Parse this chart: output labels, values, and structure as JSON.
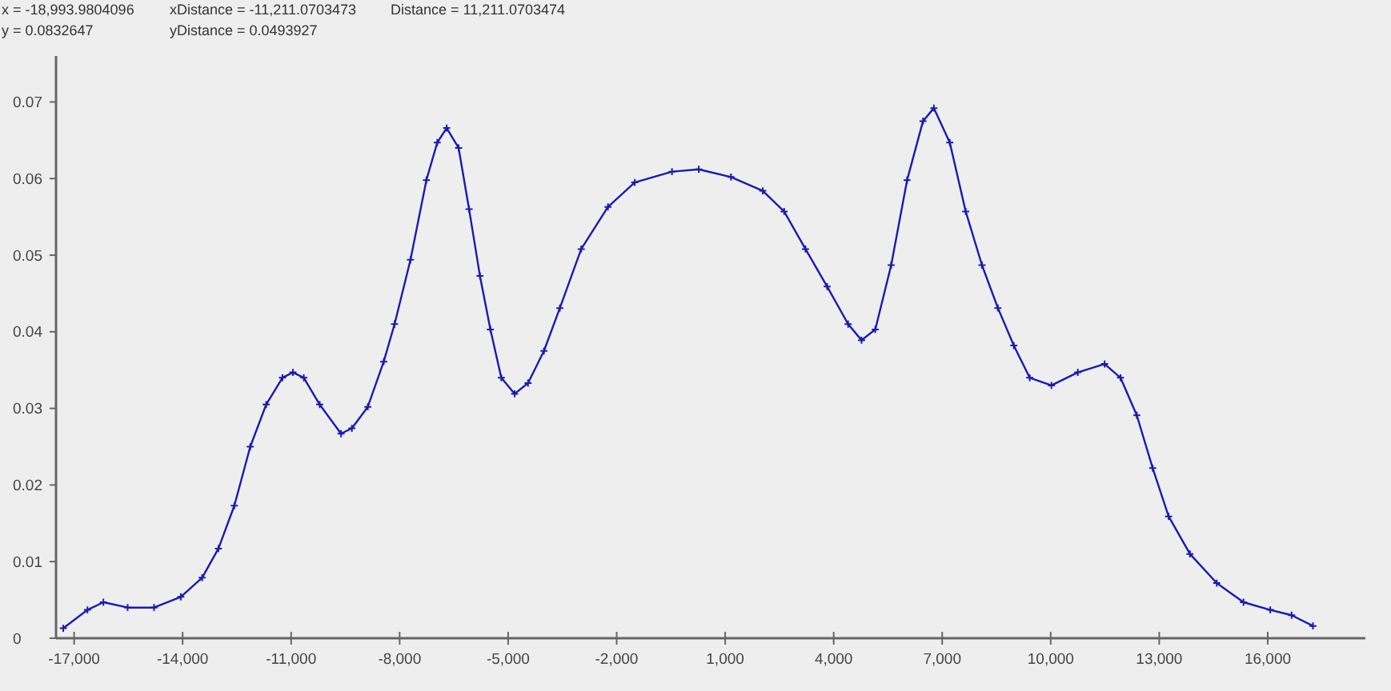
{
  "chart_data": {
    "type": "line",
    "annotations": [
      "x = -18,993.9804096",
      "xDistance = -11,211.0703473",
      "Distance = 11,211.0703474",
      "y = 0.0832647",
      "yDistance = 0.0493927"
    ],
    "x": [
      -17300,
      -16630,
      -16190,
      -15520,
      -14790,
      -14050,
      -13460,
      -13010,
      -12570,
      -12130,
      -11690,
      -11240,
      -10950,
      -10650,
      -10210,
      -9620,
      -9320,
      -8880,
      -8440,
      -8140,
      -7700,
      -7260,
      -6960,
      -6700,
      -6370,
      -6080,
      -5780,
      -5490,
      -5190,
      -4820,
      -4450,
      -4010,
      -3570,
      -2980,
      -2240,
      -1500,
      -470,
      270,
      1160,
      2040,
      2630,
      3220,
      3820,
      4400,
      4770,
      5150,
      5590,
      6030,
      6470,
      6770,
      7210,
      7650,
      8100,
      8540,
      8980,
      9420,
      10020,
      10750,
      11490,
      11930,
      12380,
      12820,
      13260,
      13850,
      14590,
      15330,
      16070,
      16660,
      17250
    ],
    "values": [
      0.0013,
      0.0037,
      0.0047,
      0.004,
      0.004,
      0.0054,
      0.0079,
      0.0117,
      0.0173,
      0.025,
      0.0305,
      0.034,
      0.0347,
      0.034,
      0.0305,
      0.0267,
      0.0274,
      0.0302,
      0.0361,
      0.041,
      0.0494,
      0.0598,
      0.0647,
      0.0666,
      0.064,
      0.056,
      0.0473,
      0.0403,
      0.034,
      0.0319,
      0.0333,
      0.0375,
      0.0431,
      0.0508,
      0.0563,
      0.0595,
      0.0609,
      0.0612,
      0.0602,
      0.0584,
      0.0557,
      0.0508,
      0.0459,
      0.041,
      0.0389,
      0.0403,
      0.0487,
      0.0598,
      0.0675,
      0.0692,
      0.0647,
      0.0557,
      0.0487,
      0.0431,
      0.0382,
      0.034,
      0.033,
      0.0347,
      0.0358,
      0.034,
      0.0291,
      0.0222,
      0.0159,
      0.011,
      0.0072,
      0.0047,
      0.0037,
      0.003,
      0.0016
    ],
    "color": "#1a1ab0",
    "xlim": [
      -17500,
      18700
    ],
    "ylim": [
      0,
      0.076
    ],
    "xticks": [
      {
        "value": -17000,
        "label": "-17,000"
      },
      {
        "value": -14000,
        "label": "-14,000"
      },
      {
        "value": -11000,
        "label": "-11,000"
      },
      {
        "value": -8000,
        "label": "-8,000"
      },
      {
        "value": -5000,
        "label": "-5,000"
      },
      {
        "value": -2000,
        "label": "-2,000"
      },
      {
        "value": 1000,
        "label": "1,000"
      },
      {
        "value": 4000,
        "label": "4,000"
      },
      {
        "value": 7000,
        "label": "7,000"
      },
      {
        "value": 10000,
        "label": "10,000"
      },
      {
        "value": 13000,
        "label": "13,000"
      },
      {
        "value": 16000,
        "label": "16,000"
      }
    ],
    "yticks": [
      0,
      0.01,
      0.02,
      0.03,
      0.04,
      0.05,
      0.06,
      0.07
    ],
    "marker": "cross",
    "line_style": "solid"
  }
}
